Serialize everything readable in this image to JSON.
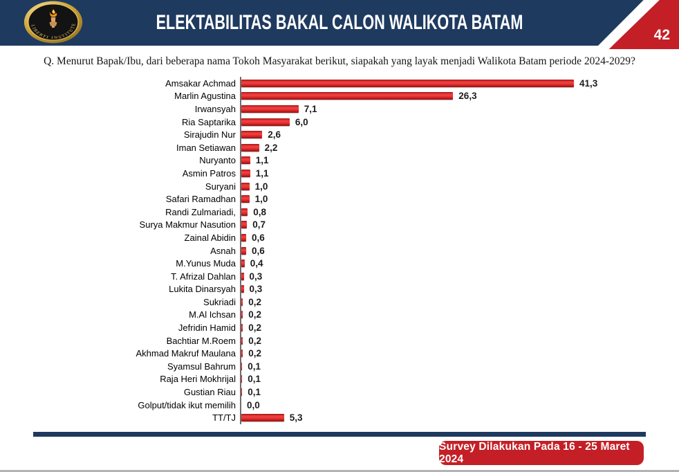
{
  "header": {
    "title": "ELEKTABILITAS BAKAL CALON WALIKOTA BATAM",
    "page_number": "42",
    "logo_text": "LIBERTI INSTITUTE"
  },
  "question": "Q. Menurut Bapak/Ibu, dari beberapa nama Tokoh Masyarakat berikut, siapakah yang layak menjadi Walikota Batam periode 2024-2029?",
  "chart_data": {
    "type": "bar",
    "orientation": "horizontal",
    "title": "Elektabilitas Bakal Calon Walikota Batam",
    "categories": [
      "Amsakar Achmad",
      "Marlin Agustina",
      "Irwansyah",
      "Ria Saptarika",
      "Sirajudin Nur",
      "Iman Setiawan",
      "Nuryanto",
      "Asmin Patros",
      "Suryani",
      "Safari Ramadhan",
      "Randi Zulmariadi,",
      "Surya Makmur Nasution",
      "Zainal Abidin",
      "Asnah",
      "M.Yunus Muda",
      "T. Afrizal Dahlan",
      "Lukita Dinarsyah",
      "Sukriadi",
      "M.Al Ichsan",
      "Jefridin Hamid",
      "Bachtiar M.Roem",
      "Akhmad Makruf Maulana",
      "Syamsul Bahrum",
      "Raja Heri Mokhrijal",
      "Gustian Riau",
      "Golput/tidak ikut memilih",
      "TT/TJ"
    ],
    "values": [
      41.3,
      26.3,
      7.1,
      6.0,
      2.6,
      2.2,
      1.1,
      1.1,
      1.0,
      1.0,
      0.8,
      0.7,
      0.6,
      0.6,
      0.4,
      0.3,
      0.3,
      0.2,
      0.2,
      0.2,
      0.2,
      0.2,
      0.1,
      0.1,
      0.1,
      0.0,
      5.3
    ],
    "value_labels": [
      "41,3",
      "26,3",
      "7,1",
      "6,0",
      "2,6",
      "2,2",
      "1,1",
      "1,1",
      "1,0",
      "1,0",
      "0,8",
      "0,7",
      "0,6",
      "0,6",
      "0,4",
      "0,3",
      "0,3",
      "0,2",
      "0,2",
      "0,2",
      "0,2",
      "0,2",
      "0,1",
      "0,1",
      "0,1",
      "0,0",
      "5,3"
    ],
    "xlim": [
      0,
      45
    ],
    "grid": false,
    "bar_color": "#d92626",
    "legend": null
  },
  "footer": {
    "survey_note": "Survey Dilakukan Pada 16 - 25 Maret 2024"
  },
  "colors": {
    "navy": "#1f3a5f",
    "red": "#c41f26",
    "bar_red": "#d92626"
  }
}
